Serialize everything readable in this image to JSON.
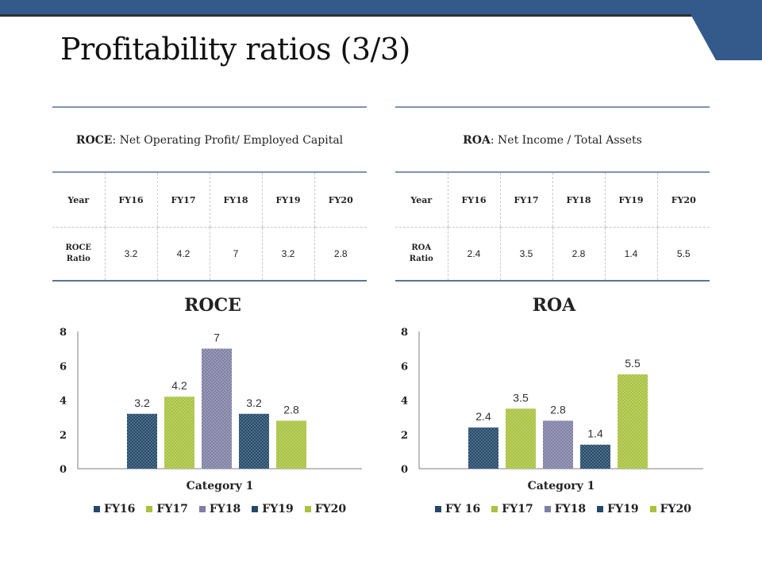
{
  "page": {
    "title": "Profitability ratios (3/3)"
  },
  "colors": {
    "navy": "#23496a",
    "green": "#a9c23f",
    "purple": "#7f7fa5",
    "header": "#345a8c"
  },
  "tables": [
    {
      "formula_bold": "ROCE",
      "formula_rest": ": Net Operating Profit/ Employed Capital",
      "header": [
        "Year",
        "FY16",
        "FY17",
        "FY18",
        "FY19",
        "FY20"
      ],
      "row_label_1": "ROCE",
      "row_label_2": "Ratio",
      "values": [
        "3.2",
        "4.2",
        "7",
        "3.2",
        "2.8"
      ]
    },
    {
      "formula_bold": "ROA",
      "formula_rest": ": Net Income / Total Assets",
      "header": [
        "Year",
        "FY16",
        "FY17",
        "FY18",
        "FY19",
        "FY20"
      ],
      "row_label_1": "ROA",
      "row_label_2": "Ratio",
      "values": [
        "2.4",
        "3.5",
        "2.8",
        "1.4",
        "5.5"
      ]
    }
  ],
  "chart_data": [
    {
      "type": "bar",
      "title": "ROCE",
      "categories": [
        "Category 1"
      ],
      "xlabel": "Category 1",
      "ylabel": "",
      "ylim": [
        0,
        8
      ],
      "yticks": [
        "0",
        "2",
        "4",
        "6",
        "8"
      ],
      "series": [
        {
          "name": "FY16",
          "values": [
            3.2
          ],
          "label": "3.2",
          "color": "#23496a"
        },
        {
          "name": "FY17",
          "values": [
            4.2
          ],
          "label": "4.2",
          "color": "#a9c23f"
        },
        {
          "name": "FY18",
          "values": [
            7
          ],
          "label": "7",
          "color": "#7f7fa5"
        },
        {
          "name": "FY19",
          "values": [
            3.2
          ],
          "label": "3.2",
          "color": "#23496a"
        },
        {
          "name": "FY20",
          "values": [
            2.8
          ],
          "label": "2.8",
          "color": "#a9c23f"
        }
      ],
      "legend": "bottom"
    },
    {
      "type": "bar",
      "title": "ROA",
      "categories": [
        "Category 1"
      ],
      "xlabel": "Category 1",
      "ylabel": "",
      "ylim": [
        0,
        8
      ],
      "yticks": [
        "0",
        "2",
        "4",
        "6",
        "8"
      ],
      "series": [
        {
          "name": "FY 16",
          "values": [
            2.4
          ],
          "label": "2.4",
          "color": "#23496a"
        },
        {
          "name": "FY17",
          "values": [
            3.5
          ],
          "label": "3.5",
          "color": "#a9c23f"
        },
        {
          "name": "FY18",
          "values": [
            2.8
          ],
          "label": "2.8",
          "color": "#7f7fa5"
        },
        {
          "name": "FY19",
          "values": [
            1.4
          ],
          "label": "1.4",
          "color": "#23496a"
        },
        {
          "name": "FY20",
          "values": [
            5.5
          ],
          "label": "5.5",
          "color": "#a9c23f"
        }
      ],
      "legend": "bottom"
    }
  ]
}
